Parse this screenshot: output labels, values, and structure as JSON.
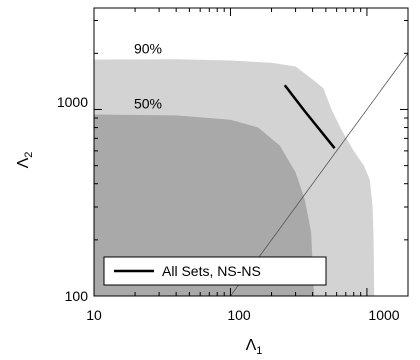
{
  "chart_data": {
    "type": "area",
    "xlabel": "Λ",
    "xlabel_sub": "1",
    "ylabel": "Λ",
    "ylabel_sub": "2",
    "xscale": "log",
    "yscale": "log",
    "xlim": [
      10,
      2000
    ],
    "ylim": [
      100,
      3500
    ],
    "x_ticks": [
      {
        "value": 10,
        "label": "10"
      },
      {
        "value": 100,
        "label": "100"
      },
      {
        "value": 1000,
        "label": "1000"
      }
    ],
    "y_ticks": [
      {
        "value": 100,
        "label": "100"
      },
      {
        "value": 1000,
        "label": "1000"
      }
    ],
    "grid": false,
    "legend": {
      "position": "bottom-left",
      "entries": [
        "All Sets, NS-NS"
      ]
    },
    "colors": {
      "region_90": "#d3d3d3",
      "region_50": "#a9a9a9",
      "line": "#000000",
      "equal_line": "#555555"
    },
    "regions": [
      {
        "label": "90%",
        "label_at": {
          "x": 14,
          "y": 1850
        },
        "boundary": [
          {
            "x": 10,
            "y": 1850
          },
          {
            "x": 40,
            "y": 1860
          },
          {
            "x": 100,
            "y": 1830
          },
          {
            "x": 200,
            "y": 1780
          },
          {
            "x": 300,
            "y": 1700
          },
          {
            "x": 400,
            "y": 1450
          },
          {
            "x": 480,
            "y": 1300
          },
          {
            "x": 550,
            "y": 1000
          },
          {
            "x": 650,
            "y": 780
          },
          {
            "x": 800,
            "y": 600
          },
          {
            "x": 950,
            "y": 500
          },
          {
            "x": 1050,
            "y": 420
          },
          {
            "x": 1100,
            "y": 300
          },
          {
            "x": 1120,
            "y": 200
          },
          {
            "x": 1130,
            "y": 100
          },
          {
            "x": 10,
            "y": 100
          }
        ]
      },
      {
        "label": "50%",
        "label_at": {
          "x": 14,
          "y": 940
        },
        "boundary": [
          {
            "x": 10,
            "y": 940
          },
          {
            "x": 40,
            "y": 930
          },
          {
            "x": 100,
            "y": 880
          },
          {
            "x": 160,
            "y": 800
          },
          {
            "x": 230,
            "y": 640
          },
          {
            "x": 300,
            "y": 460
          },
          {
            "x": 350,
            "y": 330
          },
          {
            "x": 390,
            "y": 220
          },
          {
            "x": 410,
            "y": 100
          },
          {
            "x": 10,
            "y": 100
          }
        ]
      }
    ],
    "series": [
      {
        "name": "All Sets, NS-NS",
        "points": [
          {
            "x": 250,
            "y": 1350
          },
          {
            "x": 350,
            "y": 980
          },
          {
            "x": 580,
            "y": 620
          }
        ]
      }
    ],
    "reference_line": {
      "points": [
        {
          "x": 100,
          "y": 100
        },
        {
          "x": 2000,
          "y": 2000
        }
      ]
    }
  }
}
